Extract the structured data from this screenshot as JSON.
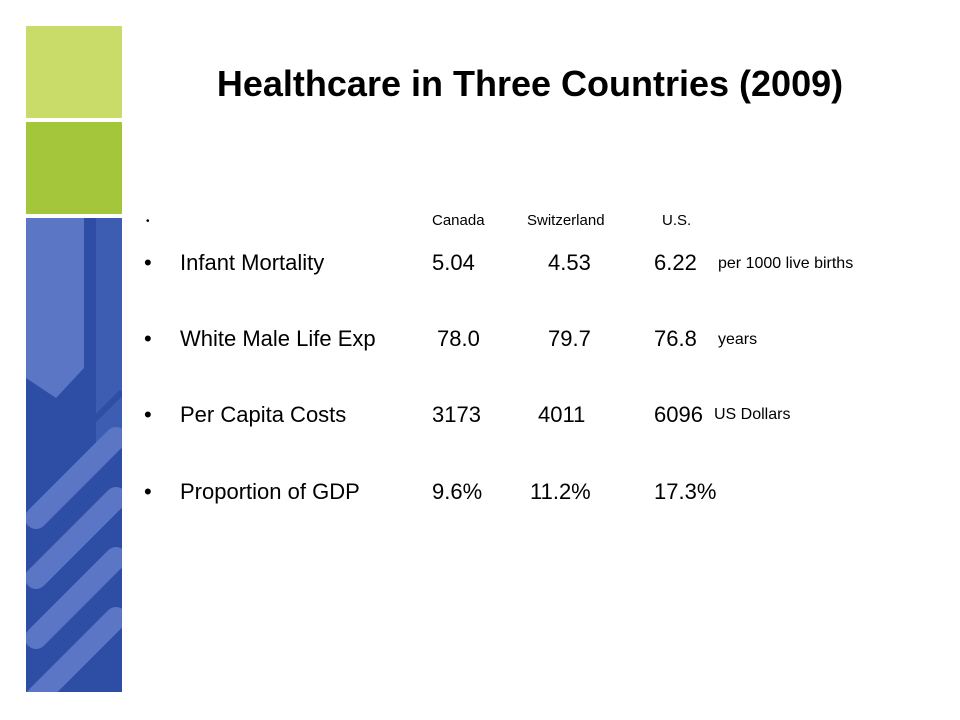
{
  "slide": {
    "title": "Healthcare in Three Countries (2009)",
    "colors": {
      "green_light": "#c9dc6a",
      "green_mid": "#a3c63a",
      "blue_dark": "#2e4ea6",
      "blue_light": "#5b76c4"
    }
  },
  "table": {
    "header": {
      "bullet": "•",
      "canada": "Canada",
      "switzerland": "Switzerland",
      "us": "U.S."
    },
    "rows": [
      {
        "bullet": "•",
        "label": "Infant Mortality",
        "canada": "5.04",
        "switzerland": "4.53",
        "us": "6.22",
        "unit": "per 1000 live births"
      },
      {
        "bullet": "•",
        "label": "White Male Life Exp",
        "canada": "78.0",
        "switzerland": "79.7",
        "us": "76.8",
        "unit": "years"
      },
      {
        "bullet": "•",
        "label": "Per Capita Costs",
        "canada": "3173",
        "switzerland": "4011",
        "us": "6096",
        "unit": "US Dollars"
      },
      {
        "bullet": "•",
        "label": "Proportion of GDP",
        "canada": "9.6%",
        "switzerland": "11.2%",
        "us": "17.3%",
        "unit": ""
      }
    ]
  }
}
